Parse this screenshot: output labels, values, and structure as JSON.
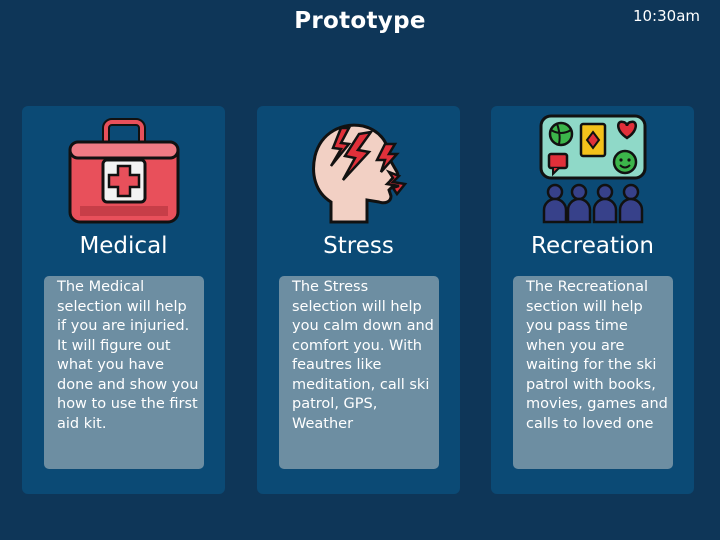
{
  "header": {
    "title": "Prototype",
    "time": "10:30am"
  },
  "cards": [
    {
      "heading": "Medical",
      "description": "The Medical selection will help if you are injuried. It will figure out what you have done and show you how to use the first aid kit."
    },
    {
      "heading": "Stress",
      "description": "The Stress selection will help you calm down and comfort you. With feautres like meditation, call ski patrol, GPS, Weather"
    },
    {
      "heading": "Recreation",
      "description": "The Recreational section will help you pass time when you are waiting for the ski patrol with books, movies, games and calls to loved one"
    }
  ],
  "colors": {
    "background": "#0e3658",
    "card": "#0b4a75",
    "description_box": "#6d8ea2"
  }
}
